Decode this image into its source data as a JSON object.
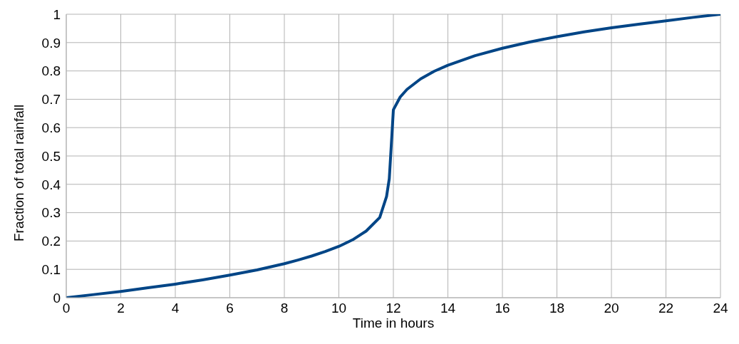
{
  "chart_data": {
    "type": "line",
    "xlabel": "Time in hours",
    "ylabel": "Fraction of total rainfall",
    "x": [
      0,
      1,
      2,
      3,
      4,
      5,
      6,
      7,
      8,
      8.5,
      9,
      9.5,
      10,
      10.5,
      11,
      11.5,
      11.75,
      11.85,
      11.9,
      11.95,
      12,
      12.25,
      12.5,
      13,
      13.5,
      14,
      15,
      16,
      17,
      18,
      19,
      20,
      21,
      22,
      23,
      24
    ],
    "series": [
      {
        "color": "#004586",
        "values": [
          0,
          0.011,
          0.022,
          0.035,
          0.048,
          0.063,
          0.08,
          0.098,
          0.12,
          0.133,
          0.147,
          0.163,
          0.181,
          0.204,
          0.235,
          0.283,
          0.357,
          0.42,
          0.5,
          0.58,
          0.663,
          0.708,
          0.735,
          0.772,
          0.799,
          0.82,
          0.854,
          0.88,
          0.902,
          0.921,
          0.938,
          0.952,
          0.965,
          0.977,
          0.989,
          1
        ]
      }
    ],
    "xlim": [
      0,
      24
    ],
    "xticks": [
      0,
      2,
      4,
      6,
      8,
      10,
      12,
      14,
      16,
      18,
      20,
      22,
      24
    ],
    "ylim": [
      0,
      1
    ],
    "yticks": [
      0,
      0.1,
      0.2,
      0.3,
      0.4,
      0.5,
      0.6,
      0.7,
      0.8,
      0.9,
      1
    ],
    "grid": true,
    "legend": false,
    "marker": "none",
    "line_style": "solid"
  }
}
